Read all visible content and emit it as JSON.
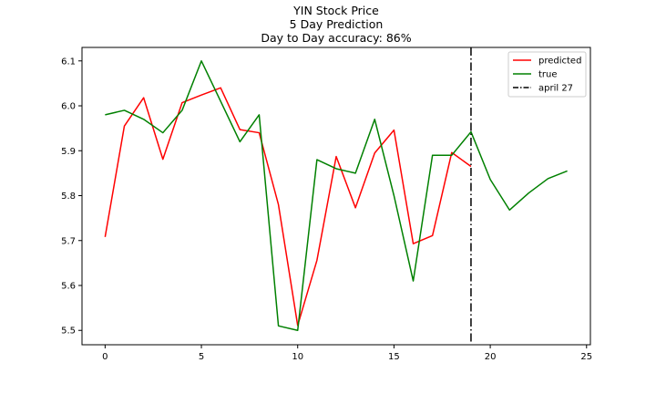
{
  "chart_data": {
    "type": "line",
    "title_lines": [
      "YIN Stock Price",
      "5 Day Prediction",
      "Day to Day accuracy: 86%"
    ],
    "xlabel": "",
    "ylabel": "",
    "xlim": [
      -1.2,
      25.2
    ],
    "ylim": [
      5.468,
      6.13
    ],
    "xticks": [
      0,
      5,
      10,
      15,
      20,
      25
    ],
    "yticks": [
      5.5,
      5.6,
      5.7,
      5.8,
      5.9,
      6.0,
      6.1
    ],
    "ytick_labels": [
      "5.5",
      "5.6",
      "5.7",
      "5.8",
      "5.9",
      "6.0",
      "6.1"
    ],
    "grid": false,
    "legend_position": "top-right",
    "series": [
      {
        "name": "predicted",
        "color": "#ff0000",
        "style": "solid",
        "x": [
          0,
          1,
          2,
          3,
          4,
          5,
          6,
          7,
          8,
          9,
          10,
          11,
          12,
          13,
          14,
          15,
          16,
          17,
          18,
          19
        ],
        "values": [
          5.708,
          5.955,
          6.018,
          5.881,
          6.007,
          6.024,
          6.04,
          5.947,
          5.94,
          5.78,
          5.511,
          5.656,
          5.887,
          5.773,
          5.895,
          5.946,
          5.693,
          5.711,
          5.896,
          5.865
        ]
      },
      {
        "name": "true",
        "color": "#008000",
        "style": "solid",
        "x": [
          0,
          1,
          2,
          3,
          4,
          5,
          6,
          7,
          8,
          9,
          10,
          11,
          12,
          13,
          14,
          15,
          16,
          17,
          18,
          19,
          20,
          21,
          22,
          23,
          24
        ],
        "values": [
          5.98,
          5.99,
          5.97,
          5.94,
          5.99,
          6.1,
          6.01,
          5.92,
          5.98,
          5.51,
          5.5,
          5.88,
          5.86,
          5.85,
          5.97,
          5.8,
          5.61,
          5.89,
          5.89,
          5.942,
          5.836,
          5.768,
          5.806,
          5.838,
          5.855
        ]
      }
    ],
    "vlines": [
      {
        "name": "april 27",
        "x": 19,
        "color": "#000000",
        "style": "dashdot"
      }
    ]
  }
}
